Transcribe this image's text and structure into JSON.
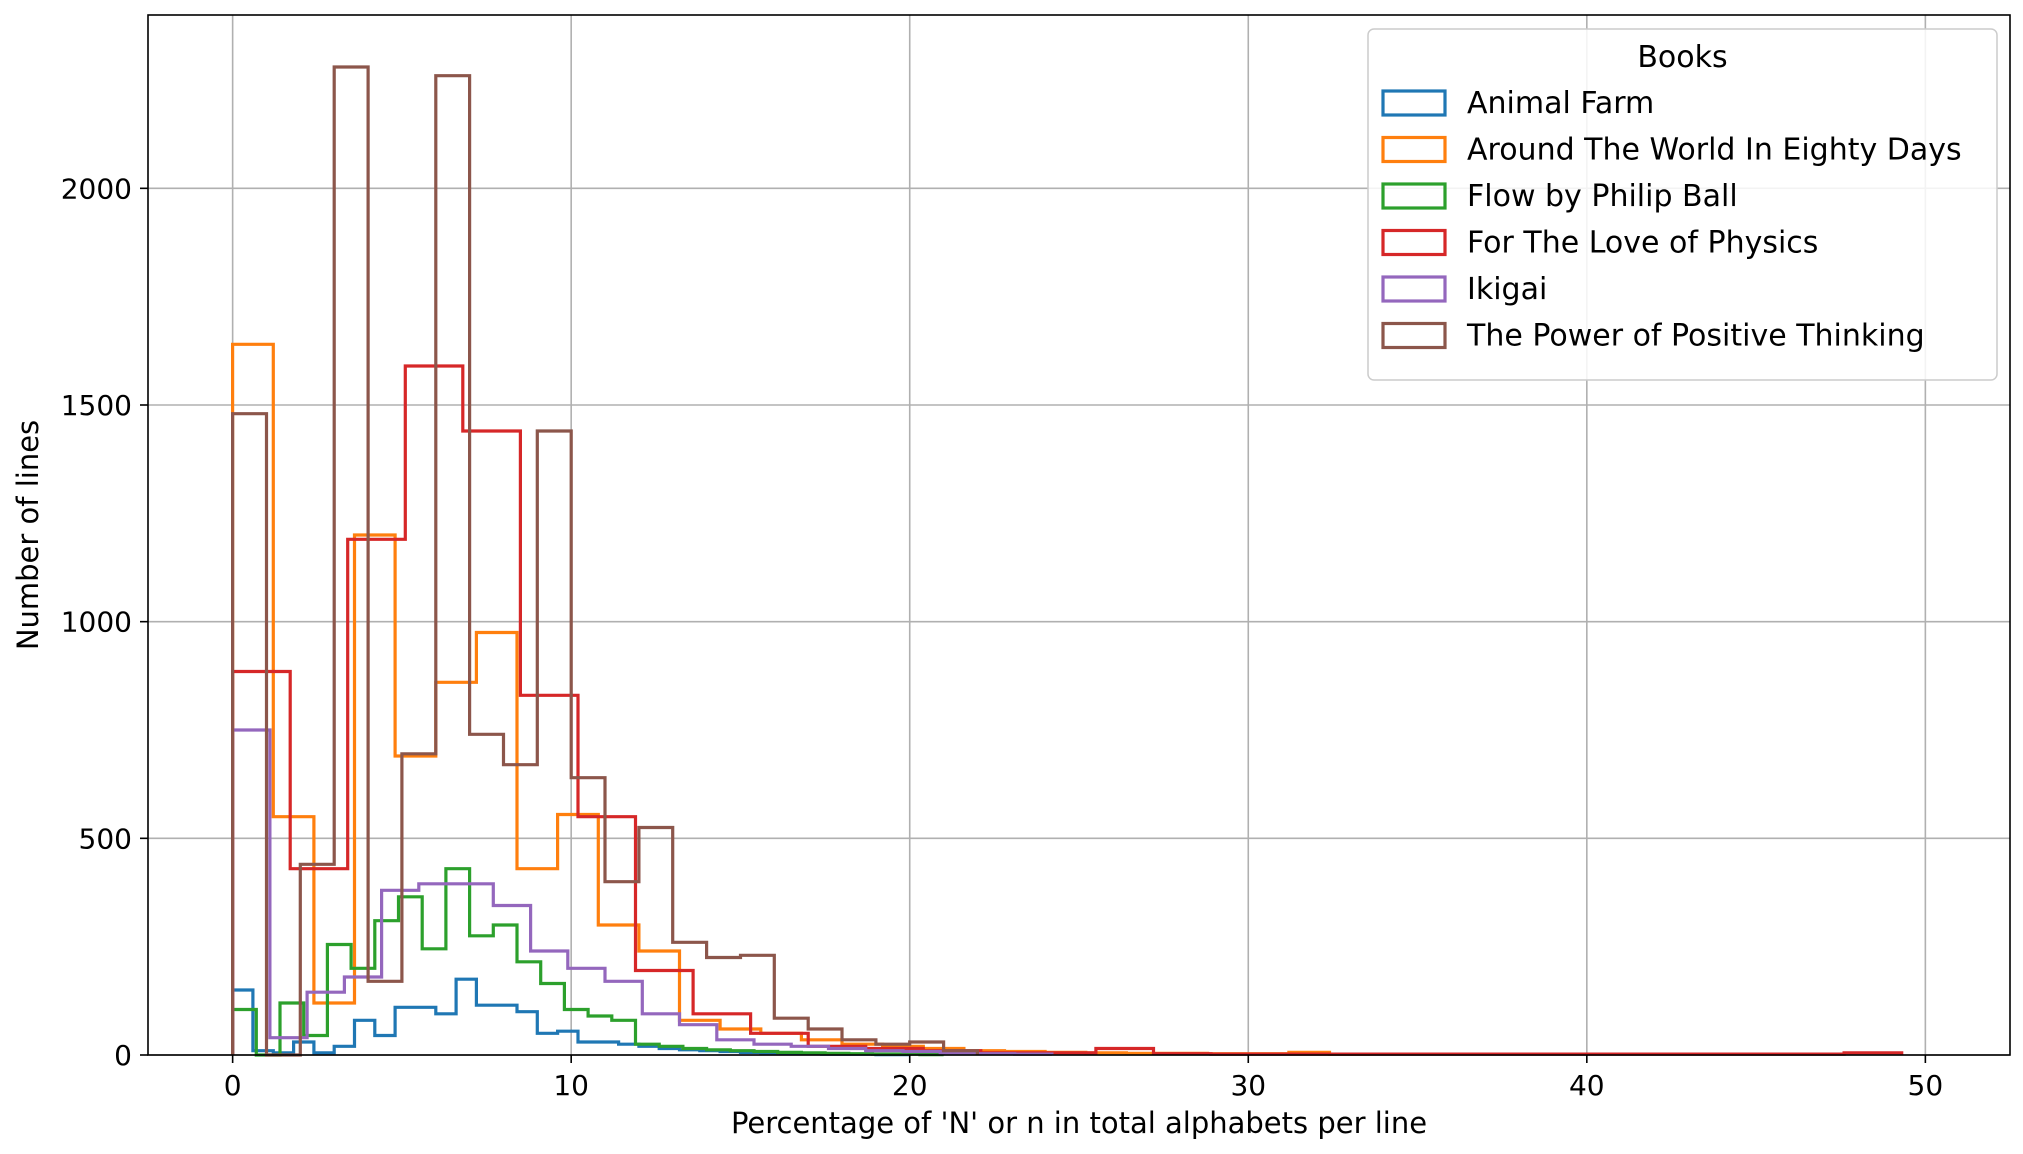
{
  "chart_data": {
    "type": "histogram",
    "xlabel": "Percentage of 'N' or n in total alphabets per line",
    "ylabel": "Number of lines",
    "xlim": [
      -2.5,
      52.5
    ],
    "ylim": [
      0,
      2400
    ],
    "xticks": [
      0,
      10,
      20,
      30,
      40,
      50
    ],
    "yticks": [
      0,
      500,
      1000,
      1500,
      2000
    ],
    "grid": true,
    "legend": {
      "title": "Books",
      "position": "top-right"
    },
    "series": [
      {
        "name": "Animal Farm",
        "color": "#1f77b4",
        "edges": [
          0,
          0.6,
          1.2,
          1.8,
          2.4,
          3.0,
          3.6,
          4.2,
          4.8,
          5.4,
          6.0,
          6.6,
          7.2,
          7.8,
          8.4,
          9.0,
          9.6,
          10.2,
          10.8,
          11.4,
          12.0,
          12.6,
          13.2,
          13.8,
          14.4,
          15.0,
          15.6,
          16.2,
          16.8,
          17.4,
          18.0,
          19.0,
          20.0
        ],
        "counts": [
          150,
          10,
          5,
          30,
          5,
          20,
          80,
          45,
          110,
          110,
          95,
          175,
          115,
          115,
          100,
          50,
          55,
          30,
          30,
          25,
          20,
          15,
          12,
          10,
          8,
          6,
          5,
          4,
          3,
          2,
          2,
          1
        ]
      },
      {
        "name": "Around The World In Eighty Days",
        "color": "#ff7f0e",
        "edges": [
          0,
          1.2,
          2.4,
          3.6,
          4.8,
          6.0,
          7.2,
          8.4,
          9.6,
          10.8,
          12.0,
          13.2,
          14.4,
          15.6,
          16.8,
          18.0,
          19.2,
          20.4,
          21.6,
          22.8,
          24.0,
          25.2,
          26.4,
          27.6,
          28.8,
          30.0,
          31.2,
          32.4,
          33.6
        ],
        "counts": [
          1640,
          550,
          120,
          1200,
          690,
          860,
          975,
          430,
          555,
          300,
          240,
          80,
          60,
          50,
          35,
          25,
          20,
          15,
          10,
          8,
          6,
          5,
          4,
          4,
          3,
          3,
          6,
          2
        ]
      },
      {
        "name": "Flow by Philip Ball",
        "color": "#2ca02c",
        "edges": [
          0,
          0.7,
          1.4,
          2.1,
          2.8,
          3.5,
          4.2,
          4.9,
          5.6,
          6.3,
          7.0,
          7.7,
          8.4,
          9.1,
          9.8,
          10.5,
          11.2,
          11.9,
          12.6,
          13.3,
          14.0,
          14.7,
          15.4,
          16.1,
          16.8,
          17.5,
          18.2,
          18.9,
          19.6,
          20.3,
          21.0
        ],
        "counts": [
          105,
          0,
          120,
          45,
          255,
          200,
          310,
          365,
          245,
          430,
          275,
          300,
          215,
          165,
          105,
          90,
          80,
          25,
          20,
          15,
          12,
          10,
          8,
          6,
          5,
          4,
          3,
          2,
          2,
          1
        ]
      },
      {
        "name": "For The Love of Physics",
        "color": "#d62728",
        "edges": [
          0,
          1.7,
          3.4,
          5.1,
          6.8,
          8.5,
          10.2,
          11.9,
          13.6,
          15.3,
          17.0,
          18.7,
          20.4,
          22.1,
          23.8,
          25.5,
          27.2,
          28.9,
          30.6,
          32.3,
          34.0,
          35.7,
          37.4,
          39.1,
          40.8,
          42.5,
          44.2,
          45.9,
          47.6,
          49.3
        ],
        "counts": [
          885,
          430,
          1190,
          1590,
          1440,
          830,
          550,
          195,
          95,
          50,
          20,
          15,
          10,
          5,
          5,
          15,
          3,
          2,
          2,
          2,
          2,
          2,
          2,
          2,
          2,
          2,
          2,
          2,
          5
        ]
      },
      {
        "name": "Ikigai",
        "color": "#9467bd",
        "edges": [
          0,
          1.1,
          2.2,
          3.3,
          4.4,
          5.5,
          6.6,
          7.7,
          8.8,
          9.9,
          11.0,
          12.1,
          13.2,
          14.3,
          15.4,
          16.5,
          17.6,
          18.7,
          19.8,
          20.9,
          22.0,
          23.1,
          24.2
        ],
        "counts": [
          750,
          40,
          145,
          180,
          380,
          395,
          395,
          345,
          240,
          200,
          170,
          95,
          70,
          35,
          25,
          20,
          15,
          10,
          8,
          5,
          3,
          2
        ]
      },
      {
        "name": "The Power of Positive Thinking",
        "color": "#8c564b",
        "edges": [
          0,
          1.0,
          2.0,
          3.0,
          4.0,
          5.0,
          6.0,
          7.0,
          8.0,
          9.0,
          10.0,
          11.0,
          12.0,
          13.0,
          14.0,
          15.0,
          16.0,
          17.0,
          18.0,
          19.0,
          20.0,
          21.0,
          22.0
        ],
        "counts": [
          1480,
          0,
          440,
          2280,
          170,
          695,
          2260,
          740,
          670,
          1440,
          640,
          400,
          525,
          260,
          225,
          230,
          85,
          60,
          35,
          25,
          30,
          10
        ]
      }
    ]
  }
}
